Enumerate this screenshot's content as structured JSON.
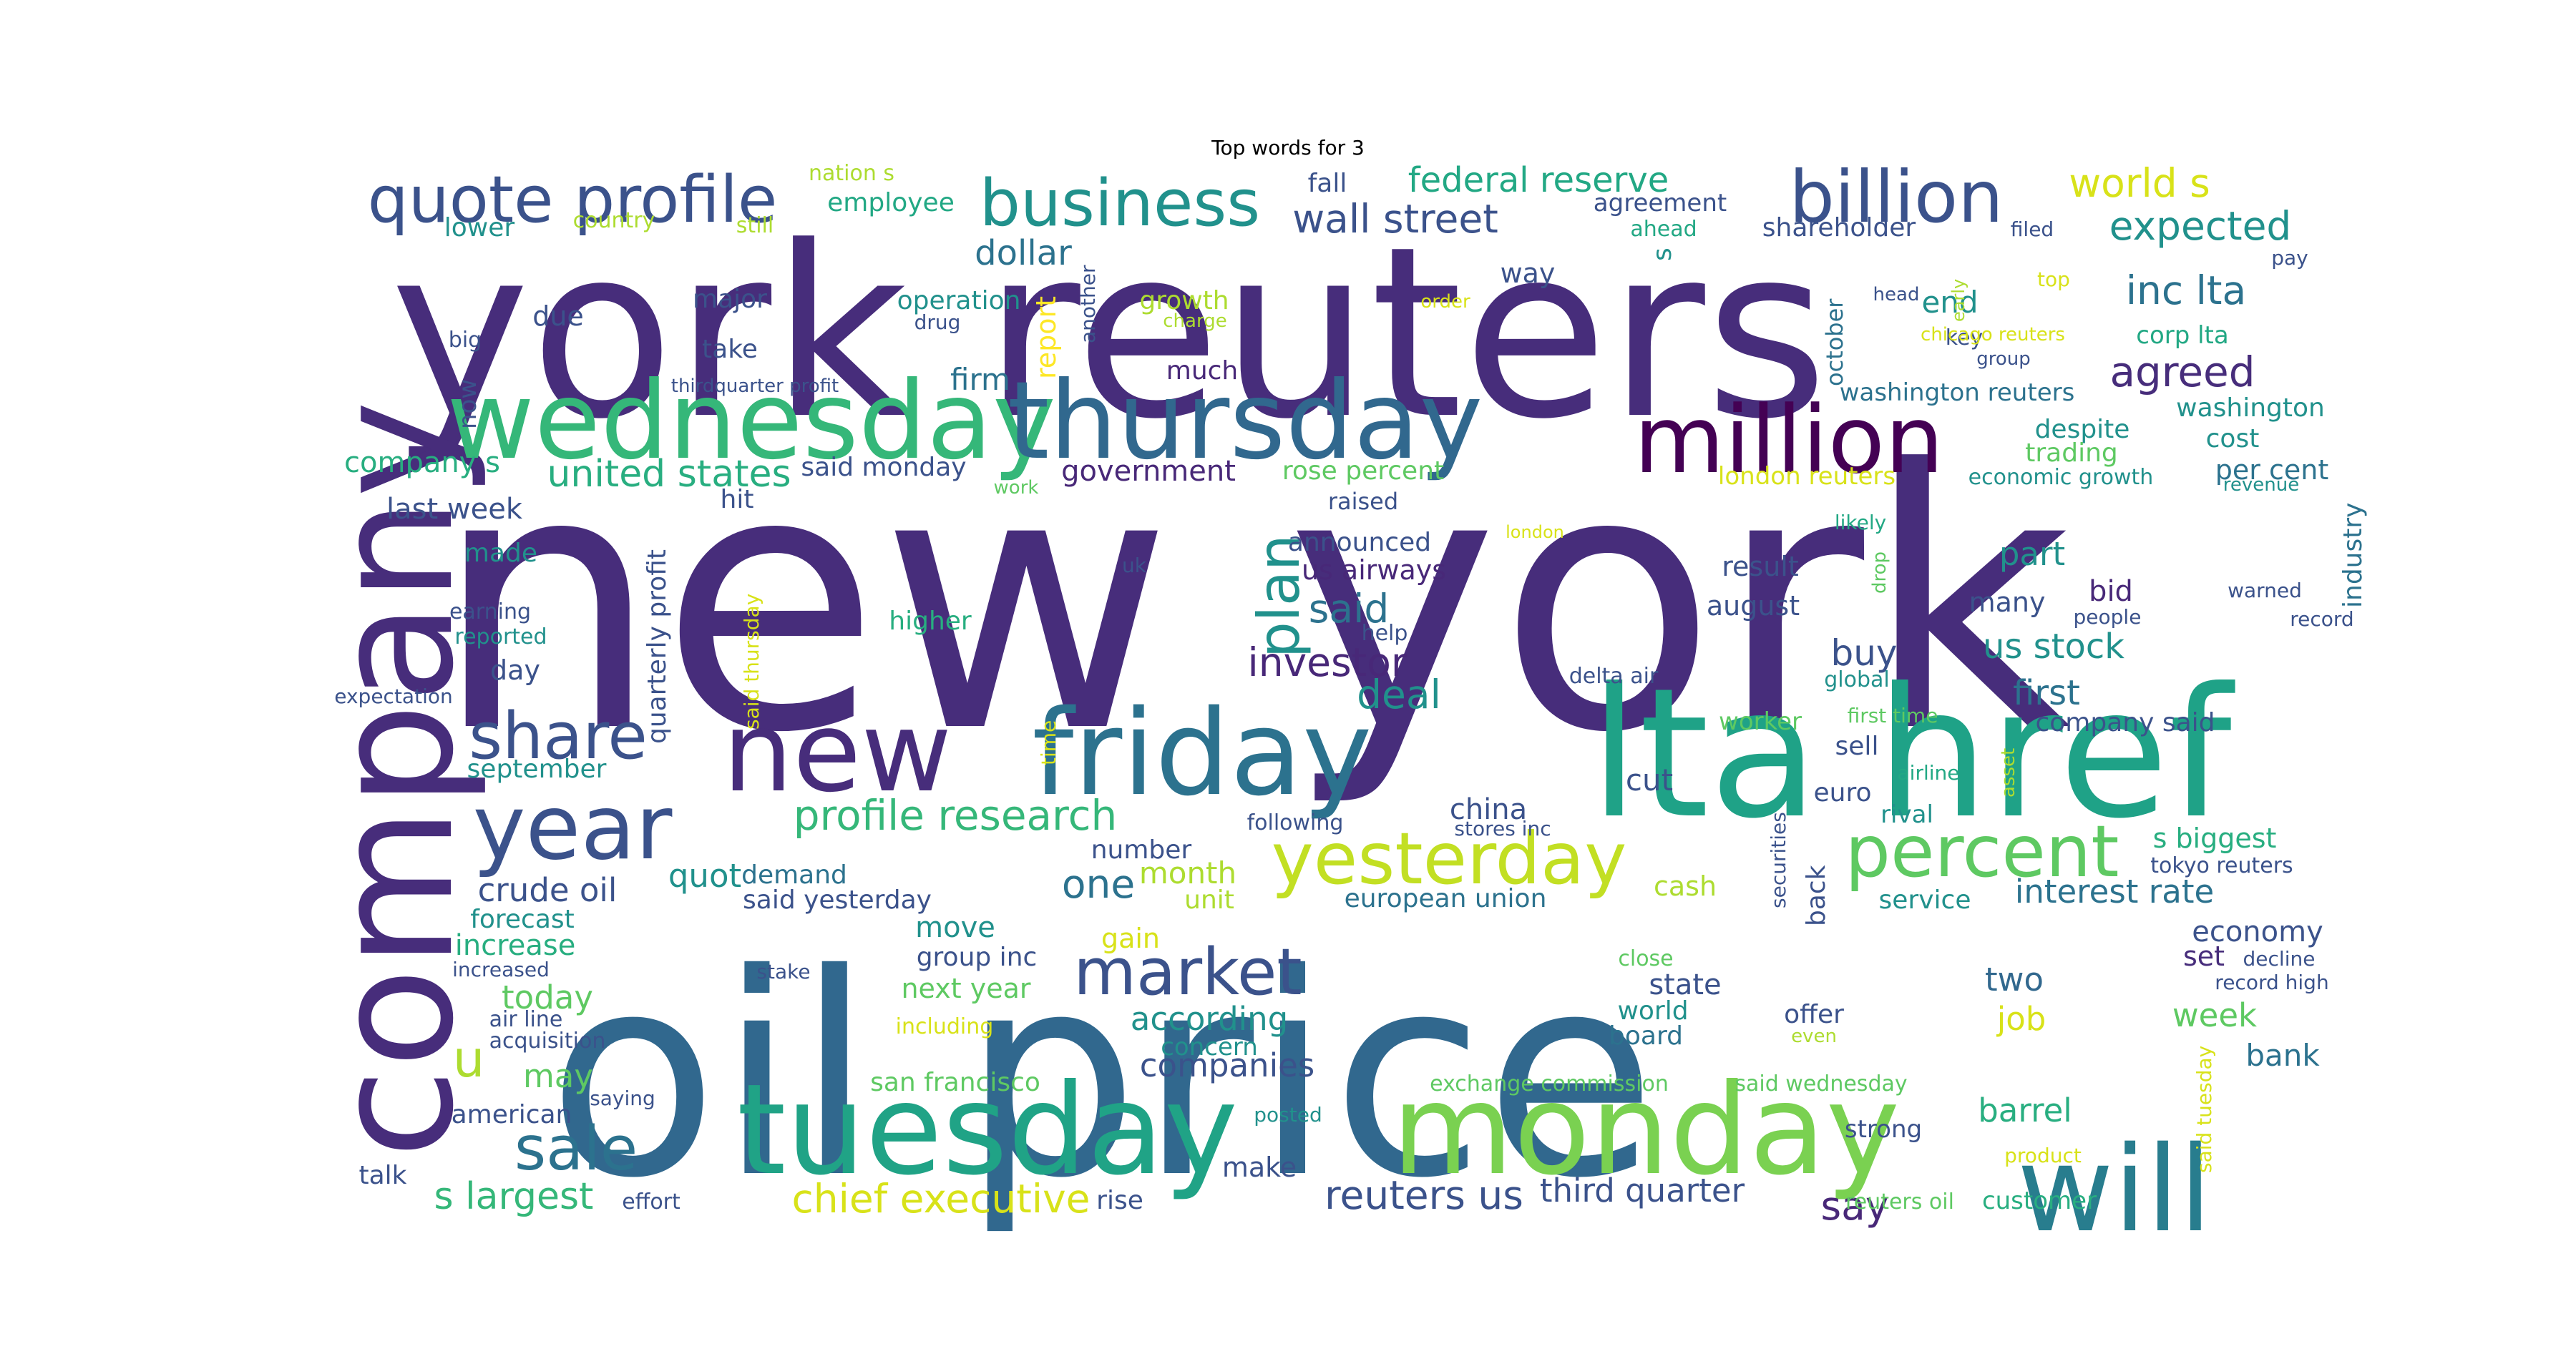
{
  "title": "Top words for 3",
  "words": [
    {
      "text": "new york",
      "color": "#472d7b"
    },
    {
      "text": "oil price",
      "color": "#31688e"
    },
    {
      "text": "york reuters",
      "color": "#472d7b"
    },
    {
      "text": "lta href",
      "color": "#1fa287"
    },
    {
      "text": "company",
      "color": "#472d7b"
    },
    {
      "text": "tuesday",
      "color": "#20a386"
    },
    {
      "text": "monday",
      "color": "#7ad151"
    },
    {
      "text": "friday",
      "color": "#2c728e"
    },
    {
      "text": "wednesday",
      "color": "#35b779"
    },
    {
      "text": "thursday",
      "color": "#31688e"
    },
    {
      "text": "million",
      "color": "#440154"
    },
    {
      "text": "will",
      "color": "#287d8e"
    },
    {
      "text": "new",
      "color": "#472d7b"
    },
    {
      "text": "year",
      "color": "#3b528b"
    },
    {
      "text": "billion",
      "color": "#3b528b"
    },
    {
      "text": "quote profile",
      "color": "#3b528b"
    },
    {
      "text": "business",
      "color": "#21918c"
    },
    {
      "text": "percent",
      "color": "#5ec962"
    },
    {
      "text": "yesterday",
      "color": "#c2df23"
    },
    {
      "text": "share",
      "color": "#3b528b"
    },
    {
      "text": "market",
      "color": "#3b528b"
    },
    {
      "text": "sale",
      "color": "#2c728e"
    },
    {
      "text": "plan",
      "color": "#21918c"
    },
    {
      "text": "profile research",
      "color": "#35b779"
    },
    {
      "text": "u",
      "color": "#addc30"
    },
    {
      "text": "wall street",
      "color": "#3b528b"
    },
    {
      "text": "united states",
      "color": "#28ae80"
    },
    {
      "text": "federal reserve",
      "color": "#22a884"
    },
    {
      "text": "world s",
      "color": "#d8e219"
    },
    {
      "text": "expected",
      "color": "#21918c"
    },
    {
      "text": "inc lta",
      "color": "#2c728e"
    },
    {
      "text": "agreed",
      "color": "#472d7b"
    },
    {
      "text": "dollar",
      "color": "#2c728e"
    },
    {
      "text": "investor",
      "color": "#482878"
    },
    {
      "text": "said",
      "color": "#2c728e"
    },
    {
      "text": "deal",
      "color": "#21918c"
    },
    {
      "text": "chief executive",
      "color": "#d8e219"
    },
    {
      "text": "s largest",
      "color": "#35b779"
    },
    {
      "text": "reuters us",
      "color": "#3b528b"
    },
    {
      "text": "third quarter",
      "color": "#3b528b"
    },
    {
      "text": "say",
      "color": "#482878"
    },
    {
      "text": "barrel",
      "color": "#28ae80"
    },
    {
      "text": "bank",
      "color": "#2c728e"
    },
    {
      "text": "week",
      "color": "#5ec962"
    },
    {
      "text": "job",
      "color": "#d8e219"
    },
    {
      "text": "two",
      "color": "#31688e"
    },
    {
      "text": "interest rate",
      "color": "#2c728e"
    },
    {
      "text": "s biggest",
      "color": "#28ae80"
    },
    {
      "text": "tokyo reuters",
      "color": "#3b528b"
    },
    {
      "text": "economy",
      "color": "#3b528b"
    },
    {
      "text": "set",
      "color": "#472d7b"
    },
    {
      "text": "decline",
      "color": "#3b528b"
    },
    {
      "text": "record high",
      "color": "#3b528b"
    },
    {
      "text": "buy",
      "color": "#3b528b"
    },
    {
      "text": "us stock",
      "color": "#21918c"
    },
    {
      "text": "first",
      "color": "#2c728e"
    },
    {
      "text": "company said",
      "color": "#3b528b"
    },
    {
      "text": "part",
      "color": "#21918c"
    },
    {
      "text": "many",
      "color": "#3b528b"
    },
    {
      "text": "result",
      "color": "#3b528b"
    },
    {
      "text": "august",
      "color": "#3b528b"
    },
    {
      "text": "bid",
      "color": "#482878"
    },
    {
      "text": "people",
      "color": "#3b528b"
    },
    {
      "text": "warned",
      "color": "#3b528b"
    },
    {
      "text": "record",
      "color": "#3b528b"
    },
    {
      "text": "industry",
      "color": "#2c728e"
    },
    {
      "text": "per cent",
      "color": "#2c728e"
    },
    {
      "text": "revenue",
      "color": "#21918c"
    },
    {
      "text": "cost",
      "color": "#21918c"
    },
    {
      "text": "washington",
      "color": "#21918c"
    },
    {
      "text": "despite",
      "color": "#21918c"
    },
    {
      "text": "trading",
      "color": "#5ec962"
    },
    {
      "text": "economic growth",
      "color": "#21918c"
    },
    {
      "text": "london reuters",
      "color": "#d8e219"
    },
    {
      "text": "washington reuters",
      "color": "#2c728e"
    },
    {
      "text": "corp lta",
      "color": "#22a884"
    },
    {
      "text": "october",
      "color": "#2c728e"
    },
    {
      "text": "end",
      "color": "#21918c"
    },
    {
      "text": "key",
      "color": "#3b528b"
    },
    {
      "text": "group",
      "color": "#3b528b"
    },
    {
      "text": "chicago reuters",
      "color": "#d8e219"
    },
    {
      "text": "head",
      "color": "#3b528b"
    },
    {
      "text": "early",
      "color": "#addc30"
    },
    {
      "text": "top",
      "color": "#d8e219"
    },
    {
      "text": "pay",
      "color": "#3b528b"
    },
    {
      "text": "filed",
      "color": "#3b528b"
    },
    {
      "text": "shareholder",
      "color": "#3b528b"
    },
    {
      "text": "ahead",
      "color": "#22a884"
    },
    {
      "text": "agreement",
      "color": "#3b528b"
    },
    {
      "text": "s",
      "color": "#21918c"
    },
    {
      "text": "way",
      "color": "#3b528b"
    },
    {
      "text": "fall",
      "color": "#3b528b"
    },
    {
      "text": "order",
      "color": "#d8e219"
    },
    {
      "text": "growth",
      "color": "#addc30"
    },
    {
      "text": "charge",
      "color": "#addc30"
    },
    {
      "text": "another",
      "color": "#3b528b"
    },
    {
      "text": "much",
      "color": "#482878"
    },
    {
      "text": "report",
      "color": "#fde725"
    },
    {
      "text": "firm",
      "color": "#2c728e"
    },
    {
      "text": "operation",
      "color": "#21918c"
    },
    {
      "text": "drug",
      "color": "#3b528b"
    },
    {
      "text": "employee",
      "color": "#22a884"
    },
    {
      "text": "nation s",
      "color": "#addc30"
    },
    {
      "text": "still",
      "color": "#addc30"
    },
    {
      "text": "country",
      "color": "#addc30"
    },
    {
      "text": "lower",
      "color": "#21918c"
    },
    {
      "text": "major",
      "color": "#3b528b"
    },
    {
      "text": "due",
      "color": "#3b528b"
    },
    {
      "text": "big",
      "color": "#3b528b"
    },
    {
      "text": "take",
      "color": "#3b528b"
    },
    {
      "text": "thirdquarter profit",
      "color": "#3b528b"
    },
    {
      "text": "now",
      "color": "#3b528b"
    },
    {
      "text": "company s",
      "color": "#28ae80"
    },
    {
      "text": "said monday",
      "color": "#3b528b"
    },
    {
      "text": "work",
      "color": "#5ec962"
    },
    {
      "text": "government",
      "color": "#482878"
    },
    {
      "text": "rose percent",
      "color": "#5ec962"
    },
    {
      "text": "raised",
      "color": "#3b528b"
    },
    {
      "text": "announced",
      "color": "#3b528b"
    },
    {
      "text": "us airways",
      "color": "#482878"
    },
    {
      "text": "london",
      "color": "#d8e219"
    },
    {
      "text": "last week",
      "color": "#3b528b"
    },
    {
      "text": "hit",
      "color": "#3b528b"
    },
    {
      "text": "made",
      "color": "#21918c"
    },
    {
      "text": "uk",
      "color": "#3b528b"
    },
    {
      "text": "quarterly profit",
      "color": "#3b528b"
    },
    {
      "text": "said thursday",
      "color": "#d8e219"
    },
    {
      "text": "earning",
      "color": "#3b528b"
    },
    {
      "text": "reported",
      "color": "#21918c"
    },
    {
      "text": "higher",
      "color": "#28ae80"
    },
    {
      "text": "help",
      "color": "#3b528b"
    },
    {
      "text": "day",
      "color": "#3b528b"
    },
    {
      "text": "expectation",
      "color": "#3b528b"
    },
    {
      "text": "delta air",
      "color": "#3b528b"
    },
    {
      "text": "global",
      "color": "#21918c"
    },
    {
      "text": "likely",
      "color": "#22a884"
    },
    {
      "text": "drop",
      "color": "#5ec962"
    },
    {
      "text": "first time",
      "color": "#5ec962"
    },
    {
      "text": "worker",
      "color": "#5ec962"
    },
    {
      "text": "september",
      "color": "#21918c"
    },
    {
      "text": "time",
      "color": "#d8e219"
    },
    {
      "text": "sell",
      "color": "#3b528b"
    },
    {
      "text": "airline",
      "color": "#22a884"
    },
    {
      "text": "euro",
      "color": "#3b528b"
    },
    {
      "text": "rival",
      "color": "#21918c"
    },
    {
      "text": "asset",
      "color": "#addc30"
    },
    {
      "text": "cut",
      "color": "#3b528b"
    },
    {
      "text": "china",
      "color": "#3b528b"
    },
    {
      "text": "stores inc",
      "color": "#3b528b"
    },
    {
      "text": "following",
      "color": "#3b528b"
    },
    {
      "text": "cash",
      "color": "#addc30"
    },
    {
      "text": "number",
      "color": "#3b528b"
    },
    {
      "text": "demand",
      "color": "#2c728e"
    },
    {
      "text": "quot",
      "color": "#21918c"
    },
    {
      "text": "one",
      "color": "#2c728e"
    },
    {
      "text": "month",
      "color": "#addc30"
    },
    {
      "text": "unit",
      "color": "#addc30"
    },
    {
      "text": "european union",
      "color": "#2c728e"
    },
    {
      "text": "securities",
      "color": "#3b528b"
    },
    {
      "text": "back",
      "color": "#3b528b"
    },
    {
      "text": "service",
      "color": "#21918c"
    },
    {
      "text": "crude oil",
      "color": "#3b528b"
    },
    {
      "text": "said yesterday",
      "color": "#3b528b"
    },
    {
      "text": "forecast",
      "color": "#21918c"
    },
    {
      "text": "increase",
      "color": "#28ae80"
    },
    {
      "text": "move",
      "color": "#21918c"
    },
    {
      "text": "group inc",
      "color": "#3b528b"
    },
    {
      "text": "gain",
      "color": "#d8e219"
    },
    {
      "text": "increased",
      "color": "#3b528b"
    },
    {
      "text": "today",
      "color": "#5ec962"
    },
    {
      "text": "stake",
      "color": "#3b528b"
    },
    {
      "text": "next year",
      "color": "#5ec962"
    },
    {
      "text": "according",
      "color": "#21918c"
    },
    {
      "text": "close",
      "color": "#5ec962"
    },
    {
      "text": "state",
      "color": "#3b528b"
    },
    {
      "text": "world",
      "color": "#21918c"
    },
    {
      "text": "offer",
      "color": "#3b528b"
    },
    {
      "text": "even",
      "color": "#addc30"
    },
    {
      "text": "air line",
      "color": "#3b528b"
    },
    {
      "text": "acquisition",
      "color": "#3b528b"
    },
    {
      "text": "including",
      "color": "#d8e219"
    },
    {
      "text": "concern",
      "color": "#21918c"
    },
    {
      "text": "board",
      "color": "#2c728e"
    },
    {
      "text": "companies",
      "color": "#3b528b"
    },
    {
      "text": "may",
      "color": "#5ec962"
    },
    {
      "text": "saying",
      "color": "#3b528b"
    },
    {
      "text": "san francisco",
      "color": "#5ec962"
    },
    {
      "text": "exchange commission",
      "color": "#5ec962"
    },
    {
      "text": "said wednesday",
      "color": "#5ec962"
    },
    {
      "text": "said tuesday",
      "color": "#d8e219"
    },
    {
      "text": "american",
      "color": "#3b528b"
    },
    {
      "text": "posted",
      "color": "#21918c"
    },
    {
      "text": "strong",
      "color": "#3b528b"
    },
    {
      "text": "product",
      "color": "#d8e219"
    },
    {
      "text": "talk",
      "color": "#3b528b"
    },
    {
      "text": "effort",
      "color": "#3b528b"
    },
    {
      "text": "make",
      "color": "#3b528b"
    },
    {
      "text": "rise",
      "color": "#3b528b"
    },
    {
      "text": "reuters oil",
      "color": "#5ec962"
    },
    {
      "text": "customer",
      "color": "#28ae80"
    }
  ]
}
